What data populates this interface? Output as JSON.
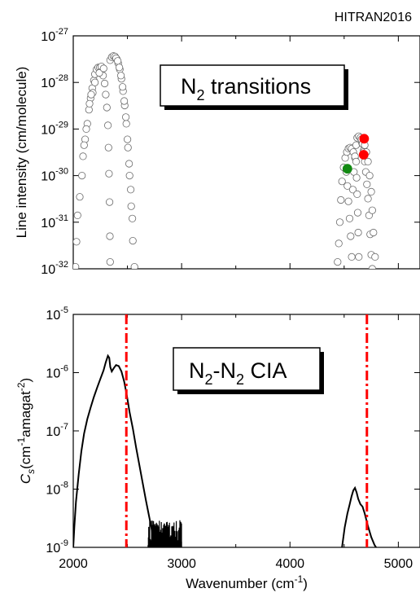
{
  "source_label": "HITRAN2016",
  "x_axis": {
    "label_main": "Wavenumber (cm",
    "label_sup": "-1",
    "label_close": ")",
    "range": [
      2000,
      5200
    ],
    "ticks": [
      2000,
      3000,
      4000,
      5000
    ],
    "tick_labels": [
      "2000",
      "3000",
      "4000",
      "5000"
    ]
  },
  "chart_data": [
    {
      "type": "scatter",
      "ylabel": "Line intensity (cm/molecule)",
      "yscale": "log",
      "ylim": [
        1e-32,
        1e-27
      ],
      "y_tick_exponents": [
        -32,
        -31,
        -30,
        -29,
        -28,
        -27
      ],
      "y_tick_base": "10",
      "annotation": {
        "text_main": "N",
        "text_sub": "2",
        "text_rest": " transitions"
      },
      "series": [
        {
          "marker": "open-circle",
          "color": "#777777",
          "points": [
            [
              2020,
              1.1e-32
            ],
            [
              2030,
              3.8e-32
            ],
            [
              2040,
              1.4e-31
            ],
            [
              2060,
              3.5e-31
            ],
            [
              2080,
              1e-30
            ],
            [
              2090,
              2.6e-30
            ],
            [
              2110,
              6e-30
            ],
            [
              2130,
              1.3e-29
            ],
            [
              2145,
              2.6e-29
            ],
            [
              2160,
              4.6e-29
            ],
            [
              2175,
              7.5e-29
            ],
            [
              2190,
              1.1e-28
            ],
            [
              2200,
              1.5e-28
            ],
            [
              2215,
              1.9e-28
            ],
            [
              2230,
              2.1e-28
            ],
            [
              2245,
              2.1e-28
            ],
            [
              2260,
              1.8e-28
            ],
            [
              2275,
              1.4e-28
            ],
            [
              2290,
              9.5e-29
            ],
            [
              2300,
              5.5e-29
            ],
            [
              2310,
              2.9e-29
            ],
            [
              2320,
              1.2e-29
            ],
            [
              2325,
              4e-30
            ],
            [
              2330,
              1.1e-30
            ],
            [
              2335,
              2.7e-31
            ],
            [
              2338,
              5e-32
            ],
            [
              2340,
              1.4e-32
            ],
            [
              2180,
              6e-29
            ],
            [
              2200,
              1e-28
            ],
            [
              2240,
              1.6e-28
            ],
            [
              2260,
              2.2e-28
            ],
            [
              2280,
              2e-28
            ],
            [
              2340,
              3e-28
            ],
            [
              2355,
              3.5e-28
            ],
            [
              2370,
              3.7e-28
            ],
            [
              2385,
              3.6e-28
            ],
            [
              2400,
              3.2e-28
            ],
            [
              2415,
              2.6e-28
            ],
            [
              2430,
              1.9e-28
            ],
            [
              2445,
              1.2e-28
            ],
            [
              2460,
              6.5e-29
            ],
            [
              2475,
              3.2e-29
            ],
            [
              2490,
              1.3e-29
            ],
            [
              2505,
              4e-30
            ],
            [
              2520,
              1e-30
            ],
            [
              2535,
              2.2e-31
            ],
            [
              2550,
              4e-32
            ],
            [
              2565,
              1.1e-32
            ],
            [
              2395,
              3.3e-28
            ],
            [
              2410,
              2.9e-28
            ],
            [
              2425,
              2.1e-28
            ],
            [
              2440,
              1.4e-28
            ],
            [
              2455,
              8e-29
            ],
            [
              2470,
              4e-29
            ],
            [
              2485,
              1.8e-29
            ],
            [
              2500,
              6e-30
            ],
            [
              2515,
              1.8e-30
            ],
            [
              2530,
              5e-31
            ],
            [
              2545,
              1.2e-31
            ],
            [
              2150,
              3.5e-29
            ],
            [
              2165,
              5.5e-29
            ],
            [
              2120,
              1e-29
            ],
            [
              2100,
              4.5e-30
            ],
            [
              4440,
              1.4e-32
            ],
            [
              4450,
              3.5e-32
            ],
            [
              4460,
              1e-31
            ],
            [
              4470,
              3e-31
            ],
            [
              4480,
              7.5e-31
            ],
            [
              4495,
              1.5e-30
            ],
            [
              4510,
              2.4e-30
            ],
            [
              4525,
              3.2e-30
            ],
            [
              4540,
              3.8e-30
            ],
            [
              4555,
              4e-30
            ],
            [
              4570,
              3.8e-30
            ],
            [
              4585,
              3.2e-30
            ],
            [
              4600,
              2.4e-30
            ],
            [
              4520,
              1.2e-30
            ],
            [
              4530,
              6e-31
            ],
            [
              4540,
              2.8e-31
            ],
            [
              4550,
              1.2e-31
            ],
            [
              4560,
              5e-32
            ],
            [
              4570,
              1.8e-32
            ],
            [
              4580,
              5e-31
            ],
            [
              4590,
              1.2e-30
            ],
            [
              4600,
              2.6e-30
            ],
            [
              4610,
              4.5e-30
            ],
            [
              4620,
              6.5e-30
            ],
            [
              4635,
              7e-30
            ],
            [
              4650,
              6.5e-30
            ],
            [
              4665,
              5e-30
            ],
            [
              4680,
              3.5e-30
            ],
            [
              4610,
              2e-30
            ],
            [
              4615,
              9e-31
            ],
            [
              4620,
              4e-31
            ],
            [
              4625,
              1.6e-31
            ],
            [
              4630,
              6e-32
            ],
            [
              4635,
              1.8e-32
            ],
            [
              4660,
              6e-30
            ],
            [
              4670,
              4.8e-30
            ],
            [
              4680,
              3.2e-30
            ],
            [
              4690,
              2e-30
            ],
            [
              4700,
              1.2e-30
            ],
            [
              4710,
              6.5e-31
            ],
            [
              4720,
              3.2e-31
            ],
            [
              4730,
              1.4e-31
            ],
            [
              4740,
              5.5e-32
            ],
            [
              4750,
              2e-32
            ],
            [
              4760,
              1e-32
            ],
            [
              4720,
              2e-30
            ],
            [
              4735,
              1e-30
            ],
            [
              4750,
              4.5e-31
            ],
            [
              4760,
              1.8e-31
            ],
            [
              4770,
              6e-32
            ],
            [
              4785,
              1.8e-32
            ],
            [
              4690,
              4.5e-30
            ],
            [
              4705,
              3.2e-30
            ]
          ]
        },
        {
          "marker": "filled-circle",
          "color": "#ff0000",
          "points": [
            [
              4685,
              6.2e-30
            ],
            [
              4680,
              2.8e-30
            ]
          ]
        },
        {
          "marker": "filled-circle",
          "color": "#138a13",
          "points": [
            [
              4530,
              1.4e-30
            ]
          ]
        }
      ]
    },
    {
      "type": "line",
      "ylabel_parts": {
        "C": "C",
        "s": "s",
        "open": "(cm",
        "sup1": "-1",
        "mid": "amagat",
        "sup2": "-2",
        "close": ")"
      },
      "yscale": "log",
      "ylim": [
        1e-09,
        1e-05
      ],
      "y_tick_exponents": [
        -9,
        -8,
        -7,
        -6,
        -5
      ],
      "y_tick_base": "10",
      "annotation": {
        "text_a": "N",
        "sub_a": "2",
        "dash": "-N",
        "sub_b": "2",
        "text_rest": " CIA"
      },
      "series": [
        {
          "color": "#000000",
          "segments": [
            [
              [
                2000,
                1e-09
              ],
              [
                2010,
                2.2e-09
              ],
              [
                2025,
                6e-09
              ],
              [
                2050,
                1.8e-08
              ],
              [
                2075,
                4.5e-08
              ],
              [
                2100,
                9e-08
              ],
              [
                2130,
                1.6e-07
              ],
              [
                2160,
                2.5e-07
              ],
              [
                2190,
                3.8e-07
              ],
              [
                2220,
                5.5e-07
              ],
              [
                2250,
                7.8e-07
              ],
              [
                2280,
                1.1e-06
              ],
              [
                2300,
                1.5e-06
              ],
              [
                2320,
                1.95e-06
              ],
              [
                2332,
                1.8e-06
              ],
              [
                2342,
                1.25e-06
              ],
              [
                2355,
                1.05e-06
              ],
              [
                2375,
                1.2e-06
              ],
              [
                2395,
                1.35e-06
              ],
              [
                2420,
                1.3e-06
              ],
              [
                2445,
                1.05e-06
              ],
              [
                2470,
                7e-07
              ],
              [
                2495,
                4e-07
              ],
              [
                2520,
                2.1e-07
              ],
              [
                2550,
                1.1e-07
              ],
              [
                2580,
                5.2e-08
              ],
              [
                2610,
                2.6e-08
              ],
              [
                2640,
                1.3e-08
              ],
              [
                2670,
                6.5e-09
              ],
              [
                2700,
                3.4e-09
              ],
              [
                2720,
                2.2e-09
              ],
              [
                2735,
                1.5e-09
              ],
              [
                2745,
                1.2e-09
              ],
              [
                2750,
                1e-09
              ]
            ],
            [
              [
                4480,
                1e-09
              ],
              [
                4505,
                2.2e-09
              ],
              [
                4530,
                3.8e-09
              ],
              [
                4550,
                5.4e-09
              ],
              [
                4568,
                7.5e-09
              ],
              [
                4585,
                9.5e-09
              ],
              [
                4600,
                1.05e-08
              ],
              [
                4615,
                8.8e-09
              ],
              [
                4630,
                6.8e-09
              ],
              [
                4650,
                5.5e-09
              ],
              [
                4670,
                5e-09
              ],
              [
                4690,
                3.8e-09
              ],
              [
                4720,
                2.3e-09
              ],
              [
                4750,
                1.5e-09
              ],
              [
                4780,
                1.1e-09
              ],
              [
                4795,
                1e-09
              ]
            ]
          ]
        },
        {
          "type": "noise",
          "color": "#000000",
          "x_range": [
            2690,
            3000
          ],
          "y_levels": [
            1e-09,
            3e-09
          ]
        }
      ],
      "vertical_lines": [
        {
          "x": 2490,
          "color": "#ff0000",
          "style": "dash-dot"
        },
        {
          "x": 4710,
          "color": "#ff0000",
          "style": "dash-dot"
        }
      ]
    }
  ]
}
